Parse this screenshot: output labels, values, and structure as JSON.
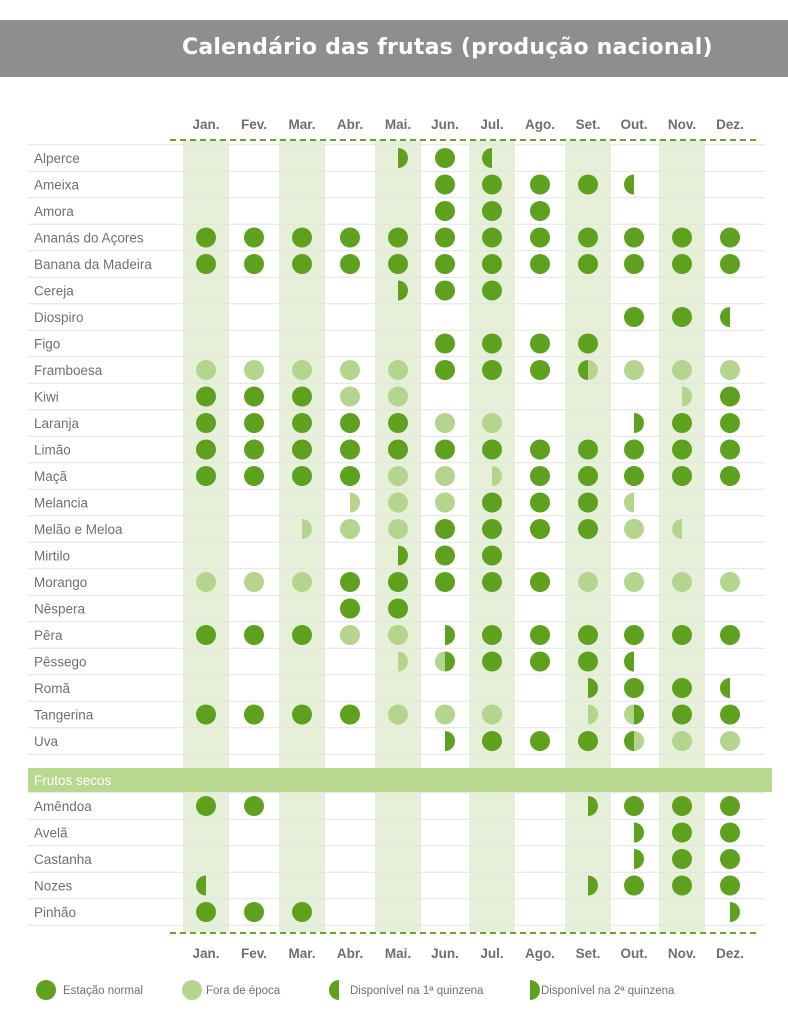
{
  "title": "Calendário das frutas (produção nacional)",
  "colors": {
    "full": "#5ea11f",
    "light": "#b3d58d",
    "band": "#e6f0d8",
    "section": "#b9d88f",
    "dash": "#6aa22e",
    "rule": "#e4e4e4",
    "header": "#8e8e8e"
  },
  "legend": [
    {
      "key": "S",
      "label": "Estação normal"
    },
    {
      "key": "F",
      "label": "Fora de época"
    },
    {
      "key": "L",
      "label": "Disponível na 1ª quinzena"
    },
    {
      "key": "R",
      "label": "Disponível na 2ª quinzena"
    }
  ],
  "chart_data": {
    "type": "table",
    "title": "Calendário das frutas (produção nacional)",
    "months": [
      "Jan.",
      "Fev.",
      "Mar.",
      "Abr.",
      "Mai.",
      "Jun.",
      "Jul.",
      "Ago.",
      "Set.",
      "Out.",
      "Nov.",
      "Dez."
    ],
    "codes": {
      "S": "Estação normal",
      "F": "Fora de época",
      "L": "Disponível na 1ª quinzena",
      "R": "Disponível na 2ª quinzena",
      "LF": "Disponível na 1ª quinzena / fora de época na 2ª",
      "FR": "Fora de época na 1ª quinzena / disponível na 2ª",
      "RF": "Disponível na 2ª quinzena (fora de época)",
      "LFo": "Disponível na 1ª quinzena (fora de época)"
    },
    "fruits": [
      {
        "name": "Alperce",
        "months": [
          "",
          "",
          "",
          "",
          "R",
          "S",
          "L",
          "",
          "",
          "",
          "",
          ""
        ]
      },
      {
        "name": "Ameixa",
        "months": [
          "",
          "",
          "",
          "",
          "",
          "S",
          "S",
          "S",
          "S",
          "L",
          "",
          ""
        ]
      },
      {
        "name": "Amora",
        "months": [
          "",
          "",
          "",
          "",
          "",
          "S",
          "S",
          "S",
          "",
          "",
          "",
          ""
        ]
      },
      {
        "name": "Ananás do Açores",
        "months": [
          "S",
          "S",
          "S",
          "S",
          "S",
          "S",
          "S",
          "S",
          "S",
          "S",
          "S",
          "S"
        ]
      },
      {
        "name": "Banana da Madeira",
        "months": [
          "S",
          "S",
          "S",
          "S",
          "S",
          "S",
          "S",
          "S",
          "S",
          "S",
          "S",
          "S"
        ]
      },
      {
        "name": "Cereja",
        "months": [
          "",
          "",
          "",
          "",
          "R",
          "S",
          "S",
          "",
          "",
          "",
          "",
          ""
        ]
      },
      {
        "name": "Diospiro",
        "months": [
          "",
          "",
          "",
          "",
          "",
          "",
          "",
          "",
          "",
          "S",
          "S",
          "L"
        ]
      },
      {
        "name": "Figo",
        "months": [
          "",
          "",
          "",
          "",
          "",
          "S",
          "S",
          "S",
          "S",
          "",
          "",
          ""
        ]
      },
      {
        "name": "Framboesa",
        "months": [
          "F",
          "F",
          "F",
          "F",
          "F",
          "S",
          "S",
          "S",
          "LF",
          "F",
          "F",
          "F"
        ]
      },
      {
        "name": "Kiwi",
        "months": [
          "S",
          "S",
          "S",
          "F",
          "F",
          "",
          "",
          "",
          "",
          "",
          "RF",
          "S"
        ]
      },
      {
        "name": "Laranja",
        "months": [
          "S",
          "S",
          "S",
          "S",
          "S",
          "F",
          "F",
          "",
          "",
          "R",
          "S",
          "S"
        ]
      },
      {
        "name": "Limão",
        "months": [
          "S",
          "S",
          "S",
          "S",
          "S",
          "S",
          "S",
          "S",
          "S",
          "S",
          "S",
          "S"
        ]
      },
      {
        "name": "Maçã",
        "months": [
          "S",
          "S",
          "S",
          "S",
          "F",
          "F",
          "RF",
          "S",
          "S",
          "S",
          "S",
          "S"
        ]
      },
      {
        "name": "Melancia",
        "months": [
          "",
          "",
          "",
          "RF",
          "F",
          "F",
          "S",
          "S",
          "S",
          "LFo",
          "",
          ""
        ]
      },
      {
        "name": "Melão e Meloa",
        "months": [
          "",
          "",
          "RF",
          "F",
          "F",
          "S",
          "S",
          "S",
          "S",
          "F",
          "LFo",
          ""
        ]
      },
      {
        "name": "Mirtilo",
        "months": [
          "",
          "",
          "",
          "",
          "R",
          "S",
          "S",
          "",
          "",
          "",
          "",
          ""
        ]
      },
      {
        "name": "Morango",
        "months": [
          "F",
          "F",
          "F",
          "S",
          "S",
          "S",
          "S",
          "S",
          "F",
          "F",
          "F",
          "F"
        ]
      },
      {
        "name": "Nêspera",
        "months": [
          "",
          "",
          "",
          "S",
          "S",
          "",
          "",
          "",
          "",
          "",
          "",
          ""
        ]
      },
      {
        "name": "Pêra",
        "months": [
          "S",
          "S",
          "S",
          "F",
          "F",
          "R",
          "S",
          "S",
          "S",
          "S",
          "S",
          "S"
        ]
      },
      {
        "name": "Pêssego",
        "months": [
          "",
          "",
          "",
          "",
          "RF",
          "FR",
          "S",
          "S",
          "S",
          "L",
          "",
          ""
        ]
      },
      {
        "name": "Romã",
        "months": [
          "",
          "",
          "",
          "",
          "",
          "",
          "",
          "",
          "R",
          "S",
          "S",
          "L"
        ]
      },
      {
        "name": "Tangerina",
        "months": [
          "S",
          "S",
          "S",
          "S",
          "F",
          "F",
          "F",
          "",
          "RF",
          "FR",
          "S",
          "S"
        ]
      },
      {
        "name": "Uva",
        "months": [
          "",
          "",
          "",
          "",
          "",
          "R",
          "S",
          "S",
          "S",
          "LF",
          "F",
          "F"
        ]
      }
    ],
    "section": "Frutos secos",
    "nuts": [
      {
        "name": "Amêndoa",
        "months": [
          "S",
          "S",
          "",
          "",
          "",
          "",
          "",
          "",
          "R",
          "S",
          "S",
          "S"
        ]
      },
      {
        "name": "Avelã",
        "months": [
          "",
          "",
          "",
          "",
          "",
          "",
          "",
          "",
          "",
          "R",
          "S",
          "S"
        ]
      },
      {
        "name": "Castanha",
        "months": [
          "",
          "",
          "",
          "",
          "",
          "",
          "",
          "",
          "",
          "R",
          "S",
          "S"
        ]
      },
      {
        "name": "Nozes",
        "months": [
          "L",
          "",
          "",
          "",
          "",
          "",
          "",
          "",
          "R",
          "S",
          "S",
          "S"
        ]
      },
      {
        "name": "Pinhão",
        "months": [
          "S",
          "S",
          "S",
          "",
          "",
          "",
          "",
          "",
          "",
          "",
          "",
          "R"
        ]
      }
    ]
  }
}
